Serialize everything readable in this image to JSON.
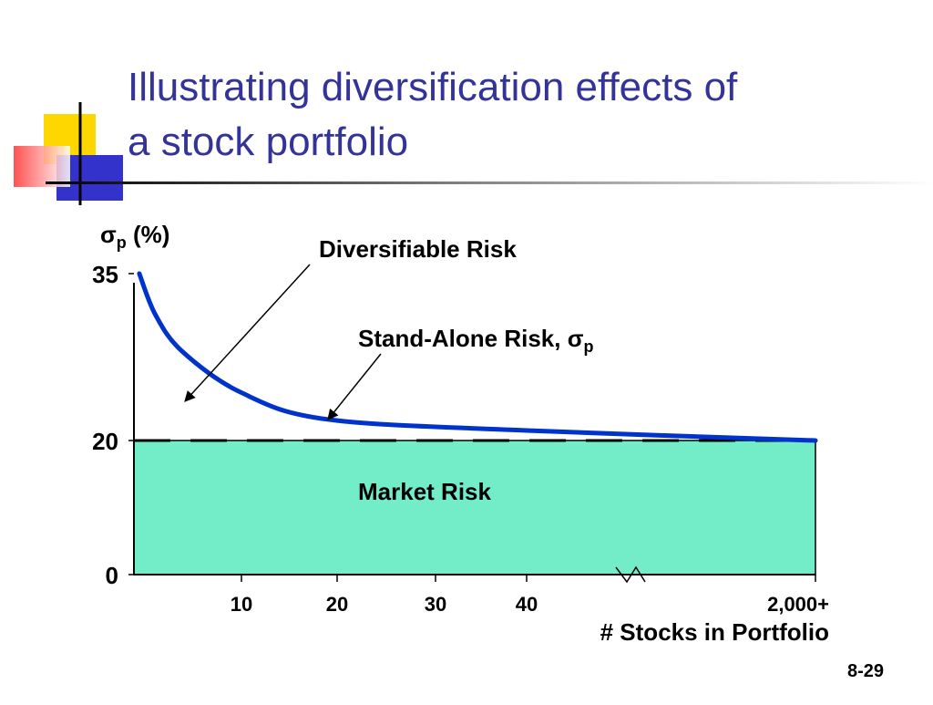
{
  "slide": {
    "title": [
      "Illustrating diversification effects of",
      "a stock portfolio"
    ],
    "page": "8-29"
  },
  "chart_data": {
    "type": "line",
    "ylabel": {
      "symbol": "σ",
      "subscript": "p",
      "unit": " (%)"
    },
    "xlabel": "# Stocks in Portfolio",
    "x": [
      0.5,
      2,
      4.5,
      10,
      19,
      40,
      2000
    ],
    "series": [
      {
        "name": "Stand-Alone Risk",
        "color": "#0033cc",
        "values": [
          35,
          31.3,
          28,
          24.3,
          21.9,
          20.9,
          20
        ]
      }
    ],
    "market_risk": 20,
    "market_color": "#73ecc8",
    "annotations": [
      {
        "text": "Diversifiable Risk"
      },
      {
        "text": "Stand-Alone Risk, σ",
        "subscript": "p"
      },
      {
        "text": "Market Risk"
      }
    ],
    "xlim": [
      0,
      2000
    ],
    "xticks": [
      10,
      20,
      30,
      40,
      {
        "value": 2000,
        "label": "2,000+"
      }
    ],
    "ylim": [
      0,
      35
    ],
    "yticks": [
      0,
      20,
      35
    ]
  }
}
